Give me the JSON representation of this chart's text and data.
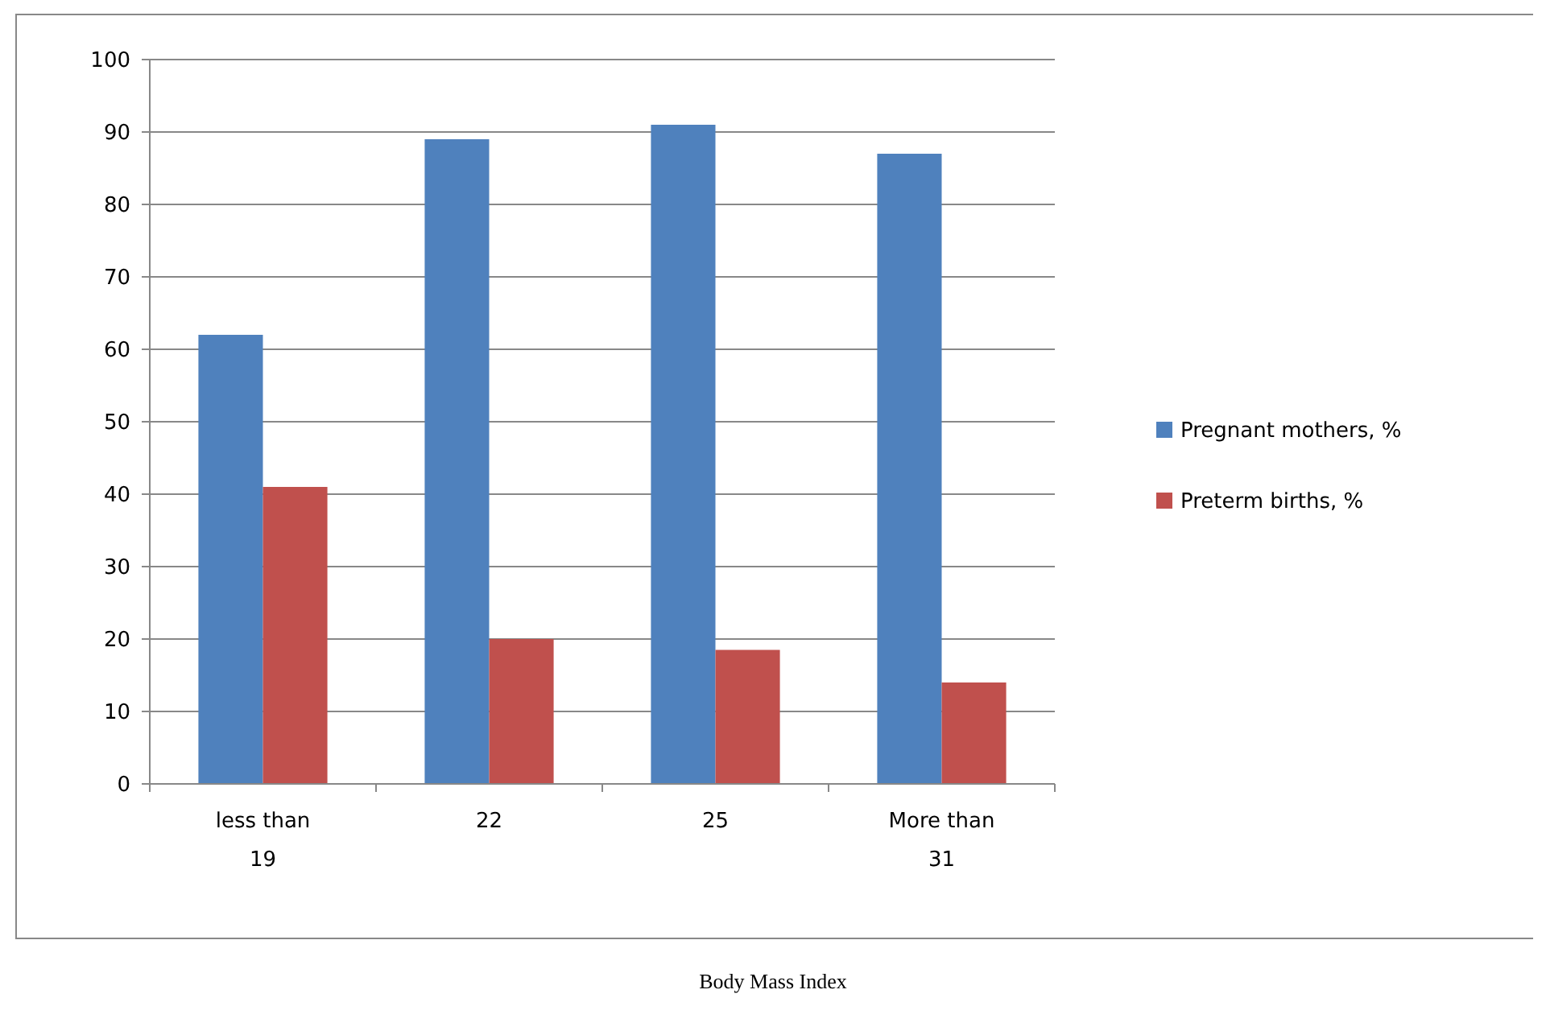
{
  "chart_data": {
    "type": "bar",
    "annotations": [
      "Body Mass Index"
    ],
    "categories": [
      "less than 19",
      "22",
      "25",
      "More than 31"
    ],
    "series": [
      {
        "name": "Pregnant mothers, %",
        "color": "#4f81bd",
        "values": [
          62,
          89,
          91,
          87
        ]
      },
      {
        "name": "Preterm births, %",
        "color": "#c0504d",
        "values": [
          41,
          20,
          18.5,
          14
        ]
      }
    ],
    "ylim": [
      0,
      100
    ],
    "yticks": [
      0,
      10,
      20,
      30,
      40,
      50,
      60,
      70,
      80,
      90,
      100
    ],
    "grid": "y",
    "legend": "right"
  }
}
